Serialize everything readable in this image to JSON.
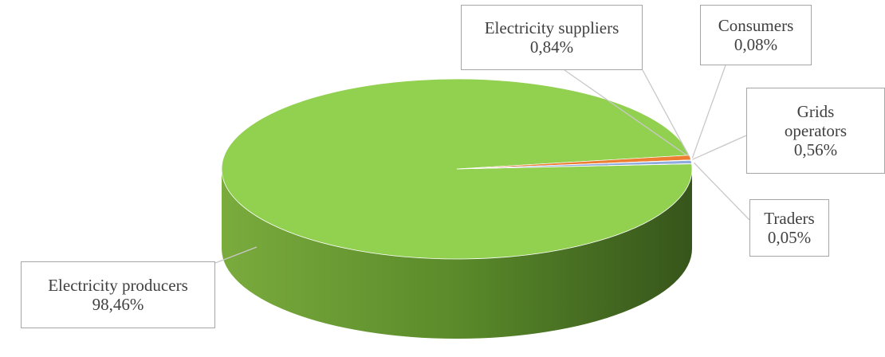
{
  "chart_data": {
    "type": "pie",
    "title": "",
    "slices": [
      {
        "label": "Electricity producers",
        "value": 98.46,
        "value_label": "98,46%",
        "color": "#92d050"
      },
      {
        "label": "Electricity suppliers",
        "value": 0.84,
        "value_label": "0,84%",
        "color": "#ed7d31"
      },
      {
        "label": "Consumers",
        "value": 0.08,
        "value_label": "0,08%",
        "color": "#a5a5a5"
      },
      {
        "label": "Grids operators",
        "value": 0.56,
        "value_label": "0,56%",
        "color": "#8faadc"
      },
      {
        "label": "Traders",
        "value": 0.05,
        "value_label": "0,05%",
        "color": "#5b9bd5"
      }
    ],
    "style": "3d",
    "legend": "none",
    "data_labels": "callouts"
  }
}
